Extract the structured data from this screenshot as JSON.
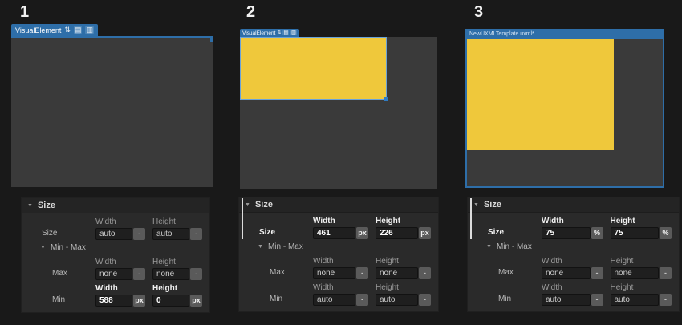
{
  "icons": {
    "foldout": "▼",
    "sort": "⇅",
    "menu": "▤",
    "trash": "▥"
  },
  "colors": {
    "accent_blue": "#2e6ea8",
    "element_yellow": "#efc83b",
    "selection_outline": "#6aa2d8",
    "override_indicator": "#dcdcdc",
    "canvas_gray": "#3a3a3a",
    "background": "#191919"
  },
  "panels": [
    {
      "number": "1",
      "tab": {
        "label": "VisualElement"
      },
      "inspector": {
        "title": "Size",
        "col_width": "Width",
        "col_height": "Height",
        "minmax_label": "Min - Max",
        "size_row": {
          "label": "Size",
          "width_value": "auto",
          "width_unit": "-",
          "height_value": "auto",
          "height_unit": "-"
        },
        "max_row": {
          "label": "Max",
          "width_value": "none",
          "width_unit": "-",
          "height_value": "none",
          "height_unit": "-"
        },
        "min_row": {
          "label": "Min",
          "width_value": "588",
          "width_unit": "px",
          "height_value": "0",
          "height_unit": "px"
        }
      }
    },
    {
      "number": "2",
      "tab": {
        "label": "VisualElement"
      },
      "inspector": {
        "title": "Size",
        "col_width": "Width",
        "col_height": "Height",
        "minmax_label": "Min - Max",
        "size_row": {
          "label": "Size",
          "width_value": "461",
          "width_unit": "px",
          "height_value": "226",
          "height_unit": "px"
        },
        "max_row": {
          "label": "Max",
          "width_value": "none",
          "width_unit": "-",
          "height_value": "none",
          "height_unit": "-"
        },
        "min_row": {
          "label": "Min",
          "width_value": "auto",
          "width_unit": "-",
          "height_value": "auto",
          "height_unit": "-"
        }
      }
    },
    {
      "number": "3",
      "doc_title": "NewUXMLTemplate.uxml*",
      "inspector": {
        "title": "Size",
        "col_width": "Width",
        "col_height": "Height",
        "minmax_label": "Min - Max",
        "size_row": {
          "label": "Size",
          "width_value": "75",
          "width_unit": "%",
          "height_value": "75",
          "height_unit": "%"
        },
        "max_row": {
          "label": "Max",
          "width_value": "none",
          "width_unit": "-",
          "height_value": "none",
          "height_unit": "-"
        },
        "min_row": {
          "label": "Min",
          "width_value": "auto",
          "width_unit": "-",
          "height_value": "auto",
          "height_unit": "-"
        }
      }
    }
  ]
}
